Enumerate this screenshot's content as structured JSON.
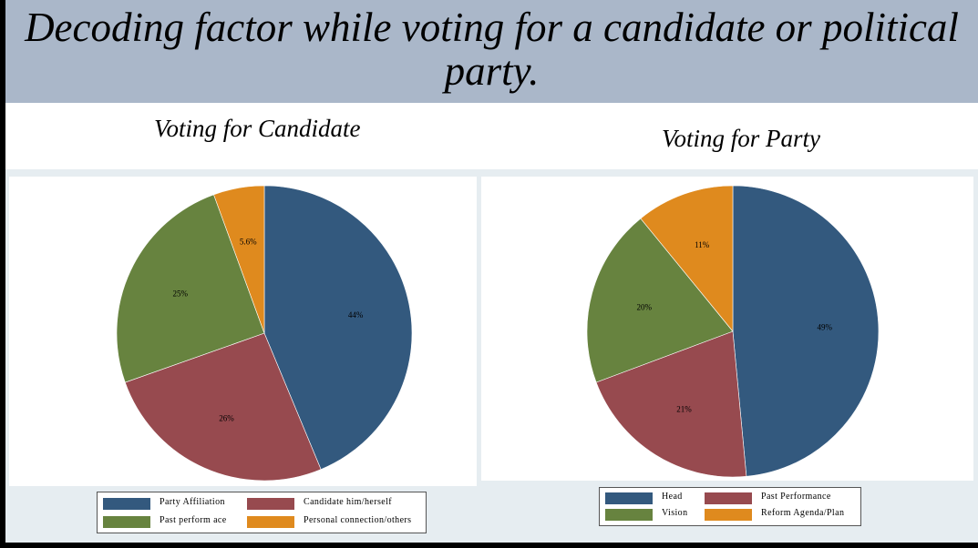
{
  "header": {
    "title": "Decoding factor while voting for a candidate or political party."
  },
  "colors": {
    "blue": "#33597e",
    "red": "#974a4f",
    "green": "#67833f",
    "orange": "#df8a1e",
    "header_bg": "#aab7c9"
  },
  "chart_data": [
    {
      "type": "pie",
      "title": "Voting for Candidate",
      "slices": [
        {
          "label": "Party Affiliation",
          "value": 44,
          "display": "44%",
          "color": "#33597e"
        },
        {
          "label": "Candidate him/herself",
          "value": 26,
          "display": "26%",
          "color": "#974a4f"
        },
        {
          "label": "Past perform ace",
          "value": 25,
          "display": "25%",
          "color": "#67833f"
        },
        {
          "label": "Personal connection/others",
          "value": 5.6,
          "display": "5.6%",
          "color": "#df8a1e"
        }
      ],
      "legend": [
        "Party Affiliation",
        "Candidate him/herself",
        "Past perform ace",
        "Personal connection/others"
      ]
    },
    {
      "type": "pie",
      "title": "Voting for Party",
      "slices": [
        {
          "label": "Head",
          "value": 49,
          "display": "49%",
          "color": "#33597e"
        },
        {
          "label": "Past Performance",
          "value": 21,
          "display": "21%",
          "color": "#974a4f"
        },
        {
          "label": "Vision",
          "value": 20,
          "display": "20%",
          "color": "#67833f"
        },
        {
          "label": "Reform Agenda/Plan",
          "value": 11,
          "display": "11%",
          "color": "#df8a1e"
        }
      ],
      "legend": [
        "Head",
        "Past Performance",
        "Vision",
        "Reform Agenda/Plan"
      ]
    }
  ]
}
